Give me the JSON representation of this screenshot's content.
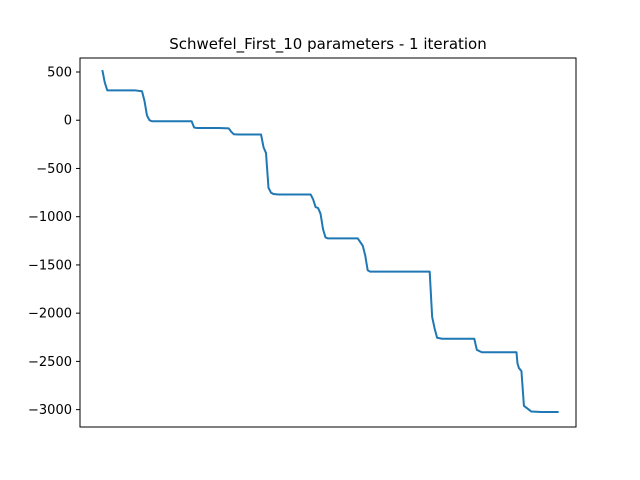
{
  "chart_data": {
    "type": "line",
    "title": "Schwefel_First_10 parameters - 1 iteration",
    "xlabel": "",
    "ylabel": "",
    "show_x_ticks": false,
    "grid": false,
    "legend": "none",
    "ylim": [
      -3180,
      645
    ],
    "xlim": [
      -0.1,
      9.9
    ],
    "yticks": [
      500,
      0,
      -500,
      -1000,
      -1500,
      -2000,
      -2500,
      -3000
    ],
    "ytick_labels": [
      "500",
      "0",
      "−500",
      "−1000",
      "−1500",
      "−2000",
      "−2500",
      "−3000"
    ],
    "line_color": "#1f77b4",
    "series": [
      {
        "x": [
          0.35,
          0.4,
          0.45,
          0.6,
          0.8,
          1.0,
          1.15,
          1.2,
          1.25,
          1.3,
          1.35,
          1.45,
          1.6,
          1.8,
          2.0,
          2.15,
          2.2,
          2.25,
          2.35,
          2.5,
          2.7,
          2.9,
          2.95,
          3.0,
          3.1,
          3.3,
          3.55,
          3.6,
          3.65,
          3.7,
          3.75,
          3.8,
          3.9,
          4.1,
          4.3,
          4.55,
          4.6,
          4.65,
          4.7,
          4.75,
          4.8,
          4.85,
          4.9,
          5.0,
          5.2,
          5.5,
          5.6,
          5.65,
          5.7,
          5.75,
          5.8,
          5.9,
          6.1,
          6.3,
          6.5,
          6.8,
          6.95,
          7.0,
          7.05,
          7.1,
          7.2,
          7.4,
          7.6,
          7.8,
          7.85,
          7.9,
          8.0,
          8.2,
          8.4,
          8.6,
          8.65,
          8.7,
          8.72,
          8.75,
          8.8,
          8.85,
          9.0,
          9.2,
          9.4,
          9.55
        ],
        "y": [
          520,
          390,
          310,
          310,
          310,
          310,
          300,
          200,
          50,
          0,
          -10,
          -10,
          -10,
          -10,
          -10,
          -10,
          -75,
          -80,
          -80,
          -80,
          -80,
          -85,
          -120,
          -145,
          -148,
          -148,
          -148,
          -280,
          -340,
          -700,
          -750,
          -765,
          -770,
          -770,
          -770,
          -770,
          -820,
          -900,
          -910,
          -970,
          -1130,
          -1215,
          -1225,
          -1225,
          -1225,
          -1225,
          -1300,
          -1400,
          -1555,
          -1570,
          -1570,
          -1570,
          -1570,
          -1570,
          -1570,
          -1570,
          -1570,
          -2040,
          -2160,
          -2255,
          -2265,
          -2265,
          -2265,
          -2265,
          -2265,
          -2380,
          -2405,
          -2405,
          -2405,
          -2405,
          -2405,
          -2405,
          -2520,
          -2570,
          -2600,
          -2960,
          -3020,
          -3025,
          -3025,
          -3025
        ]
      }
    ]
  }
}
